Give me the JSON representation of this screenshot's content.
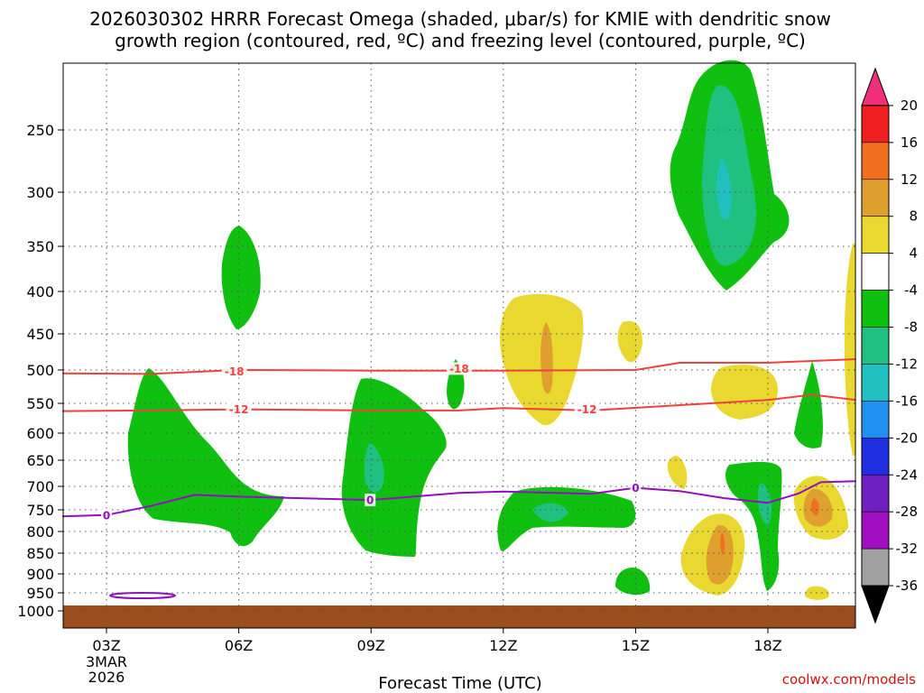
{
  "chart_data": {
    "type": "heatmap",
    "title_line1": "2026030302 HRRR Forecast Omega (shaded, μbar/s) for KMIE with dendritic snow",
    "title_line2": "growth region (contoured, red, ºC) and freezing level (contoured, purple, ºC)",
    "xlabel": "Forecast Time (UTC)",
    "ylabel": "",
    "credit": "coolwx.com/models",
    "x_start_label": [
      "03Z",
      "3MAR",
      "2026"
    ],
    "x_ticks": [
      {
        "label": "03Z",
        "hour": 3
      },
      {
        "label": "06Z",
        "hour": 6
      },
      {
        "label": "09Z",
        "hour": 9
      },
      {
        "label": "12Z",
        "hour": 12
      },
      {
        "label": "15Z",
        "hour": 15
      },
      {
        "label": "18Z",
        "hour": 18
      }
    ],
    "xlim": [
      2,
      20
    ],
    "y_ticks": [
      250,
      300,
      350,
      400,
      450,
      500,
      550,
      600,
      650,
      700,
      750,
      800,
      850,
      900,
      950,
      1000
    ],
    "ylim": [
      200,
      1030
    ],
    "ground_level_hpa": 980,
    "colorbar": {
      "labels": [
        "20",
        "16",
        "12",
        "8",
        "4",
        "-4",
        "-8",
        "-12",
        "-16",
        "-20",
        "-24",
        "-28",
        "-32",
        "-36"
      ],
      "colors": [
        "#f0307a",
        "#f02020",
        "#f07020",
        "#e0a030",
        "#e8d830",
        "#ffffff",
        "#10c010",
        "#20c080",
        "#20c0c0",
        "#2090f0",
        "#2030e0",
        "#7020c0",
        "#a010c0",
        "#a0a0a0",
        "#000000"
      ]
    },
    "contours": [
      {
        "name": "dgz-top",
        "label": "-18",
        "color": "#f04040",
        "points": [
          [
            2,
            505
          ],
          [
            4,
            506
          ],
          [
            6,
            500
          ],
          [
            9,
            501
          ],
          [
            12,
            501
          ],
          [
            15,
            500
          ],
          [
            16,
            490
          ],
          [
            18,
            490
          ],
          [
            20,
            485
          ]
        ],
        "label_points": [
          [
            5.9,
            502
          ],
          [
            11,
            498
          ]
        ]
      },
      {
        "name": "dgz-bottom",
        "label": "-12",
        "color": "#f04040",
        "points": [
          [
            2,
            563
          ],
          [
            4,
            562
          ],
          [
            6,
            560
          ],
          [
            9,
            562
          ],
          [
            11,
            562
          ],
          [
            12,
            558
          ],
          [
            14,
            562
          ],
          [
            16,
            553
          ],
          [
            18,
            545
          ],
          [
            19,
            537
          ],
          [
            20,
            545
          ]
        ],
        "label_points": [
          [
            6,
            560
          ],
          [
            13.9,
            560
          ]
        ]
      },
      {
        "name": "freezing-level",
        "label": "0",
        "color": "#9010c0",
        "points": [
          [
            2,
            765
          ],
          [
            3,
            762
          ],
          [
            4,
            742
          ],
          [
            5,
            718
          ],
          [
            6,
            722
          ],
          [
            9,
            729
          ],
          [
            11,
            714
          ],
          [
            12,
            711
          ],
          [
            14,
            716
          ],
          [
            15,
            703
          ],
          [
            16,
            710
          ],
          [
            17,
            725
          ],
          [
            18,
            735
          ],
          [
            18.7,
            715
          ],
          [
            19.2,
            692
          ],
          [
            20,
            690
          ]
        ],
        "label_points": [
          [
            3,
            762
          ],
          [
            8.98,
            729
          ],
          [
            15,
            703
          ]
        ]
      }
    ],
    "omega_regions": [
      {
        "level": "-8",
        "center": [
          17,
          240
        ],
        "rx_hours": 1.3,
        "ry_hpa": 150
      },
      {
        "level": "-8",
        "center": [
          5.5,
          385
        ],
        "rx_hours": 0.5,
        "ry_hpa": 55
      },
      {
        "level": "-8",
        "center": [
          4.5,
          650
        ],
        "rx_hours": 1.6,
        "ry_hpa": 130
      },
      {
        "level": "-8",
        "center": [
          9.5,
          700
        ],
        "rx_hours": 1.8,
        "ry_hpa": 150
      },
      {
        "level": "-8",
        "center": [
          13,
          770
        ],
        "rx_hours": 2.3,
        "ry_hpa": 60
      },
      {
        "level": "-12",
        "center": [
          17,
          280
        ],
        "rx_hours": 0.6,
        "ry_hpa": 110
      },
      {
        "level": "4",
        "center": [
          13,
          450
        ],
        "rx_hours": 1.0,
        "ry_hpa": 70
      },
      {
        "level": "4",
        "center": [
          17,
          850
        ],
        "rx_hours": 0.6,
        "ry_hpa": 110
      },
      {
        "level": "8",
        "center": [
          19.2,
          740
        ],
        "rx_hours": 0.5,
        "ry_hpa": 40
      }
    ]
  }
}
